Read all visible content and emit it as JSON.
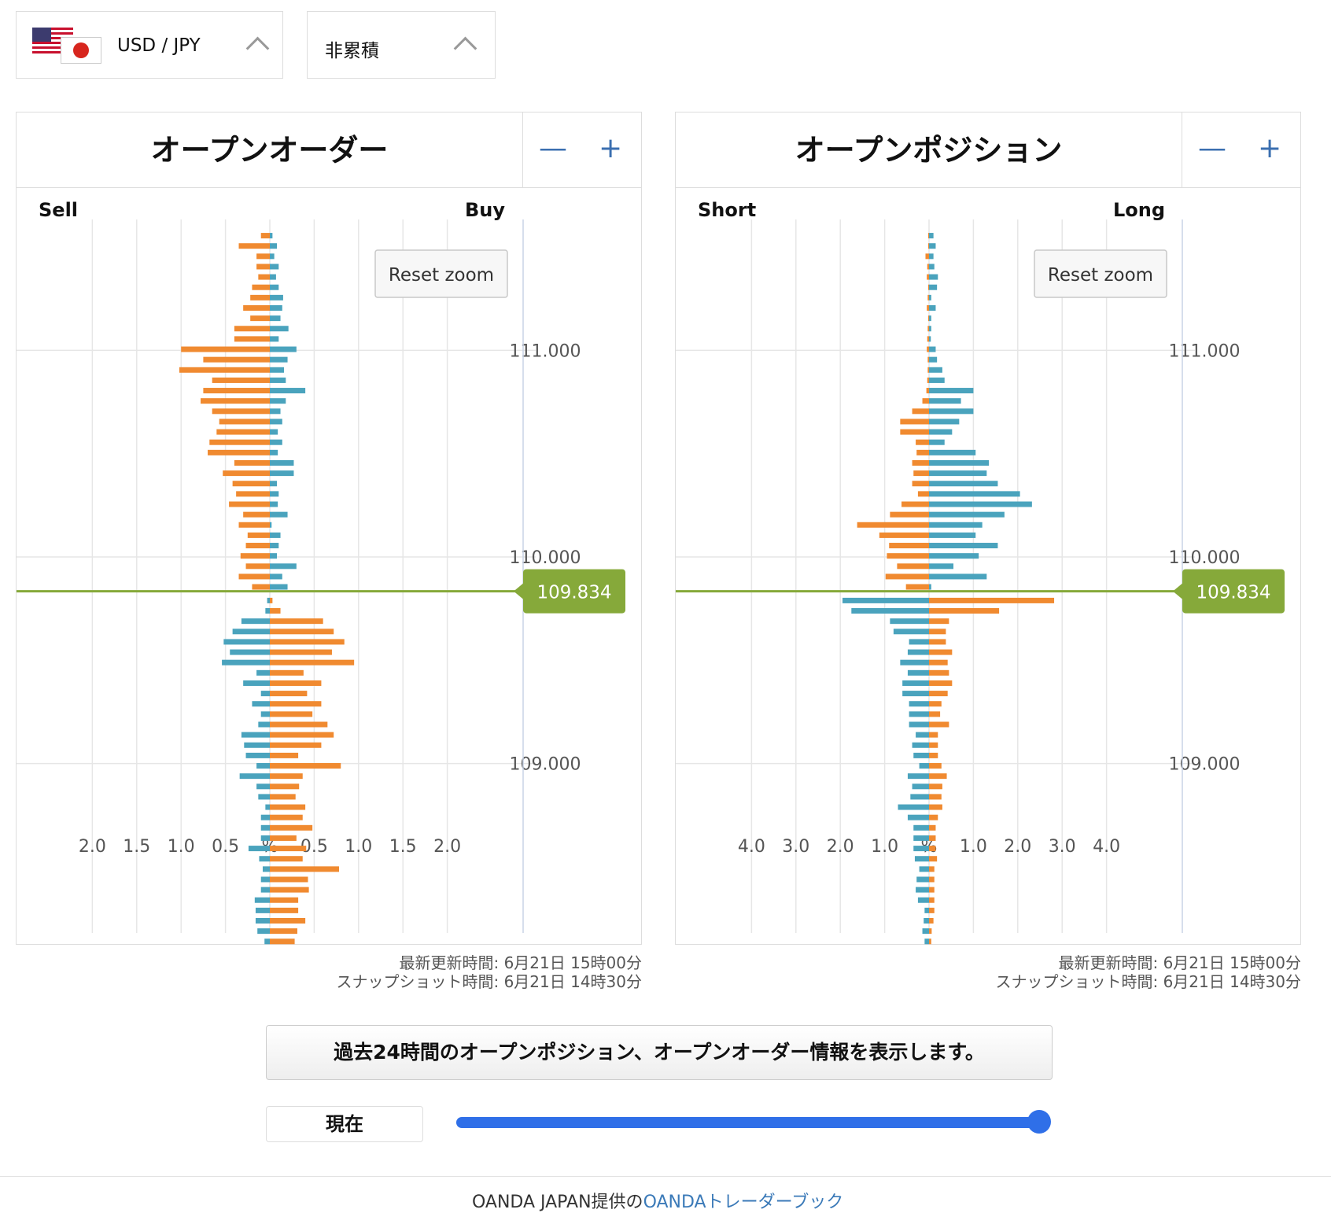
{
  "selectors": {
    "pair": "USD / JPY",
    "mode": "非累積"
  },
  "panels": [
    {
      "title": "オープンオーダー",
      "left_label": "Sell",
      "right_label": "Buy",
      "reset_zoom": "Reset zoom",
      "current_price": "109.834",
      "updated": "最新更新時間: 6月21日 15時00分",
      "snapshot": "スナップショット時間: 6月21日 14時30分"
    },
    {
      "title": "オープンポジション",
      "left_label": "Short",
      "right_label": "Long",
      "reset_zoom": "Reset zoom",
      "current_price": "109.834",
      "updated": "最新更新時間: 6月21日 15時00分",
      "snapshot": "スナップショット時間: 6月21日 14時30分"
    }
  ],
  "zoom": {
    "minus": "—",
    "plus": "+"
  },
  "info_button": "過去24時間のオープンポジション、オープンオーダー情報を表示します。",
  "now_button": "現在",
  "slider": {
    "value": 1.0
  },
  "footer": {
    "prefix": "OANDA JAPAN提供の",
    "link": "OANDAトレーダーブック"
  },
  "chart_data": [
    {
      "type": "bar",
      "orientation": "horizontal",
      "y_ticks": [
        "111.000",
        "110.000",
        "109.000"
      ],
      "x_ticks": [
        "2.0",
        "1.5",
        "1.0",
        "0.5",
        "%",
        "0.5",
        "1.0",
        "1.5",
        "2.0"
      ],
      "x_max": 2.5,
      "price_range": [
        108.18,
        111.58
      ],
      "bucket_size": 0.05,
      "current_price": 109.834,
      "colors": {
        "orange": "#f08a30",
        "teal": "#4aa3bd",
        "price": "#86a93a"
      },
      "orange_values_above": [
        0.1,
        0.35,
        0.15,
        0.15,
        0.13,
        0.2,
        0.22,
        0.3,
        0.22,
        0.4,
        0.4,
        1.0,
        0.75,
        1.02,
        0.65,
        0.75,
        0.78,
        0.65,
        0.57,
        0.6,
        0.68,
        0.7,
        0.4,
        0.53,
        0.42,
        0.38,
        0.46,
        0.3,
        0.35,
        0.25,
        0.27,
        0.33,
        0.27,
        0.35,
        0.2
      ],
      "teal_values_above": [
        0.03,
        0.08,
        0.05,
        0.1,
        0.07,
        0.1,
        0.15,
        0.14,
        0.12,
        0.21,
        0.1,
        0.3,
        0.2,
        0.16,
        0.18,
        0.4,
        0.18,
        0.12,
        0.14,
        0.09,
        0.14,
        0.09,
        0.27,
        0.27,
        0.08,
        0.1,
        0.09,
        0.2,
        0.02,
        0.12,
        0.1,
        0.08,
        0.3,
        0.14,
        0.2
      ],
      "orange_values_below": [
        0.03,
        0.12,
        0.6,
        0.72,
        0.84,
        0.7,
        0.95,
        0.38,
        0.58,
        0.42,
        0.58,
        0.48,
        0.65,
        0.72,
        0.58,
        0.32,
        0.8,
        0.37,
        0.33,
        0.29,
        0.4,
        0.37,
        0.48,
        0.3,
        0.41,
        0.37,
        0.78,
        0.43,
        0.44,
        0.32,
        0.32,
        0.4,
        0.31,
        0.28
      ],
      "teal_values_above_note": "",
      "teal_values_below": [
        0.03,
        0.05,
        0.32,
        0.42,
        0.52,
        0.45,
        0.54,
        0.15,
        0.3,
        0.1,
        0.2,
        0.1,
        0.13,
        0.32,
        0.29,
        0.27,
        0.15,
        0.34,
        0.15,
        0.13,
        0.05,
        0.1,
        0.1,
        0.1,
        0.24,
        0.12,
        0.08,
        0.1,
        0.1,
        0.17,
        0.16,
        0.16,
        0.14,
        0.06
      ]
    },
    {
      "type": "bar",
      "orientation": "horizontal",
      "y_ticks": [
        "111.000",
        "110.000",
        "109.000"
      ],
      "x_ticks": [
        "4.0",
        "3.0",
        "2.0",
        "1.0",
        "%",
        "1.0",
        "2.0",
        "3.0",
        "4.0"
      ],
      "x_max": 5.0,
      "price_range": [
        108.18,
        111.58
      ],
      "bucket_size": 0.05,
      "current_price": 109.834,
      "colors": {
        "orange": "#f08a30",
        "teal": "#4aa3bd",
        "price": "#86a93a"
      },
      "orange_values_above": [
        0.02,
        0.02,
        0.08,
        0.04,
        0.05,
        0.02,
        0.03,
        0.05,
        0.02,
        0.03,
        0.04,
        0.05,
        0.03,
        0.03,
        0.04,
        0.06,
        0.15,
        0.38,
        0.65,
        0.65,
        0.3,
        0.28,
        0.38,
        0.35,
        0.38,
        0.25,
        0.62,
        0.88,
        1.62,
        1.12,
        0.9,
        0.95,
        0.72,
        0.98,
        0.52
      ],
      "teal_values_above": [
        0.1,
        0.15,
        0.1,
        0.12,
        0.2,
        0.18,
        0.05,
        0.15,
        0.05,
        0.05,
        0.04,
        0.15,
        0.18,
        0.3,
        0.35,
        1.0,
        0.72,
        1.0,
        0.68,
        0.52,
        0.35,
        1.05,
        1.35,
        1.3,
        1.55,
        2.05,
        2.32,
        1.7,
        1.2,
        1.05,
        1.55,
        1.12,
        0.55,
        1.3,
        0.05
      ],
      "orange_values_below": [
        2.82,
        1.58,
        0.45,
        0.38,
        0.38,
        0.52,
        0.42,
        0.45,
        0.52,
        0.42,
        0.28,
        0.25,
        0.45,
        0.2,
        0.2,
        0.2,
        0.28,
        0.4,
        0.3,
        0.28,
        0.3,
        0.2,
        0.15,
        0.15,
        0.15,
        0.18,
        0.12,
        0.12,
        0.12,
        0.12,
        0.12,
        0.1,
        0.06,
        0.05
      ],
      "teal_values_below": [
        1.95,
        1.75,
        0.88,
        0.8,
        0.45,
        0.48,
        0.65,
        0.48,
        0.6,
        0.6,
        0.45,
        0.45,
        0.45,
        0.3,
        0.38,
        0.35,
        0.22,
        0.48,
        0.38,
        0.42,
        0.7,
        0.48,
        0.35,
        0.35,
        0.35,
        0.32,
        0.22,
        0.28,
        0.3,
        0.25,
        0.1,
        0.12,
        0.15,
        0.1
      ]
    }
  ]
}
